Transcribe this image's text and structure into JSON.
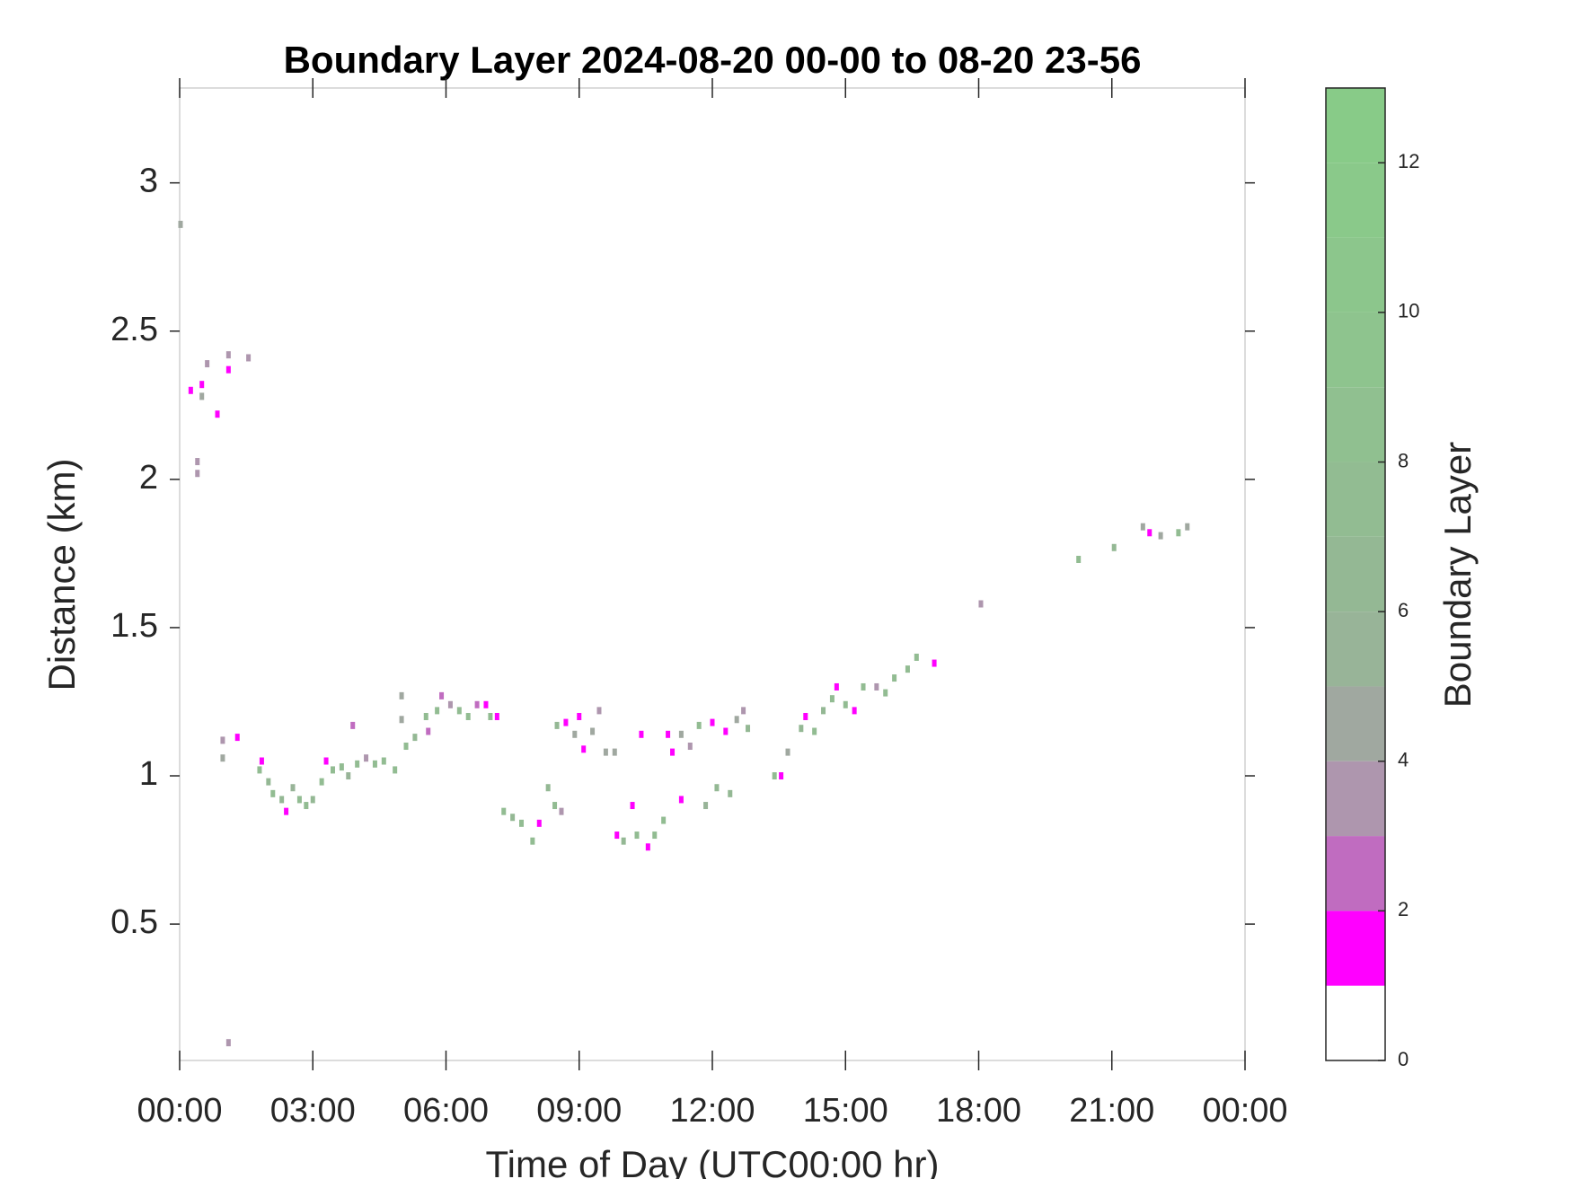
{
  "chart_data": {
    "type": "heatmap",
    "title": "Boundary Layer 2024-08-20 00-00 to 08-20 23-56",
    "x_label": "Time of Day (UTC00:00 hr)",
    "y_label": "Distance (km)",
    "colorbar_label": "Boundary Layer",
    "xlim": [
      0,
      24
    ],
    "xticks": [
      {
        "value": 0,
        "label": "00:00"
      },
      {
        "value": 3,
        "label": "03:00"
      },
      {
        "value": 6,
        "label": "06:00"
      },
      {
        "value": 9,
        "label": "09:00"
      },
      {
        "value": 12,
        "label": "12:00"
      },
      {
        "value": 15,
        "label": "15:00"
      },
      {
        "value": 18,
        "label": "18:00"
      },
      {
        "value": 21,
        "label": "21:00"
      },
      {
        "value": 24,
        "label": "00:00"
      }
    ],
    "ylim": [
      0.04,
      3.32
    ],
    "yticks": [
      0.5,
      1,
      1.5,
      2,
      2.5,
      3
    ],
    "clim": [
      0,
      13
    ],
    "colorbar_ticks": [
      0,
      2,
      4,
      6,
      8,
      10,
      12
    ],
    "colors": [
      "#ffffff",
      "#ff00ff",
      "#c06cc0",
      "#ae96ae",
      "#a0a8a0",
      "#98b498",
      "#94b894",
      "#92bc92",
      "#90c090",
      "#8ec48e",
      "#8cc68c",
      "#8ac98a",
      "#88cb88"
    ],
    "x": [
      0.02,
      0.25,
      0.5,
      0.5,
      0.62,
      0.85,
      0.4,
      0.4,
      1.1,
      1.1,
      1.55,
      1.1,
      0.97,
      0.97,
      1.3,
      1.85,
      1.8,
      2.0,
      2.1,
      2.3,
      2.4,
      2.55,
      2.7,
      2.85,
      3.0,
      3.2,
      3.3,
      3.45,
      3.65,
      3.8,
      3.9,
      4.0,
      4.2,
      4.4,
      4.6,
      4.85,
      5.0,
      5.0,
      5.1,
      5.3,
      5.55,
      5.6,
      5.8,
      5.9,
      6.1,
      6.3,
      6.5,
      6.7,
      6.9,
      7.0,
      7.15,
      7.3,
      7.5,
      7.7,
      7.95,
      8.1,
      8.3,
      8.45,
      8.6,
      8.5,
      8.7,
      8.9,
      9.0,
      9.1,
      9.3,
      9.45,
      9.6,
      9.8,
      9.85,
      10.0,
      10.2,
      10.3,
      10.4,
      10.55,
      10.7,
      10.9,
      11.0,
      11.1,
      11.3,
      11.3,
      11.5,
      11.7,
      11.85,
      12.0,
      12.1,
      12.3,
      12.4,
      12.55,
      12.7,
      12.8,
      13.4,
      13.55,
      13.7,
      14.0,
      14.1,
      14.3,
      14.5,
      14.7,
      14.8,
      15.0,
      15.2,
      15.4,
      15.7,
      15.9,
      16.1,
      16.4,
      16.6,
      17.0,
      18.05,
      20.25,
      21.05,
      21.7,
      21.85,
      22.1,
      22.5,
      22.7
    ],
    "y": [
      2.86,
      2.3,
      2.32,
      2.28,
      2.39,
      2.22,
      2.06,
      2.02,
      2.37,
      2.42,
      2.41,
      0.1,
      1.12,
      1.06,
      1.13,
      1.05,
      1.02,
      0.98,
      0.94,
      0.92,
      0.88,
      0.96,
      0.92,
      0.9,
      0.92,
      0.98,
      1.05,
      1.02,
      1.03,
      1.0,
      1.17,
      1.04,
      1.06,
      1.04,
      1.05,
      1.02,
      1.27,
      1.19,
      1.1,
      1.13,
      1.2,
      1.15,
      1.22,
      1.27,
      1.24,
      1.22,
      1.2,
      1.24,
      1.24,
      1.2,
      1.2,
      0.88,
      0.86,
      0.84,
      0.78,
      0.84,
      0.96,
      0.9,
      0.88,
      1.17,
      1.18,
      1.14,
      1.2,
      1.09,
      1.15,
      1.22,
      1.08,
      1.08,
      0.8,
      0.78,
      0.9,
      0.8,
      1.14,
      0.76,
      0.8,
      0.85,
      1.14,
      1.08,
      1.14,
      0.92,
      1.1,
      1.17,
      0.9,
      1.18,
      0.96,
      1.15,
      0.94,
      1.19,
      1.22,
      1.16,
      1.0,
      1.0,
      1.08,
      1.16,
      1.2,
      1.15,
      1.22,
      1.26,
      1.3,
      1.24,
      1.22,
      1.3,
      1.3,
      1.28,
      1.33,
      1.36,
      1.4,
      1.38,
      1.58,
      1.73,
      1.77,
      1.84,
      1.82,
      1.81,
      1.82,
      1.84
    ],
    "values": [
      4,
      1,
      1,
      4,
      3,
      1,
      3,
      3,
      1,
      3,
      3,
      3,
      3,
      4,
      1,
      1,
      7,
      6,
      7,
      6,
      1,
      5,
      7,
      7,
      6,
      7,
      1,
      7,
      7,
      5,
      2,
      7,
      3,
      7,
      7,
      7,
      4,
      4,
      7,
      6,
      7,
      2,
      7,
      2,
      3,
      7,
      7,
      2,
      1,
      7,
      1,
      7,
      6,
      7,
      7,
      1,
      6,
      7,
      3,
      6,
      1,
      4,
      1,
      1,
      4,
      3,
      4,
      4,
      1,
      6,
      1,
      7,
      1,
      1,
      7,
      7,
      1,
      1,
      4,
      1,
      3,
      7,
      5,
      1,
      6,
      1,
      6,
      4,
      3,
      6,
      7,
      1,
      4,
      6,
      1,
      7,
      6,
      7,
      1,
      7,
      1,
      7,
      3,
      7,
      7,
      7,
      7,
      1,
      3,
      7,
      6,
      4,
      1,
      4,
      7,
      4
    ]
  }
}
